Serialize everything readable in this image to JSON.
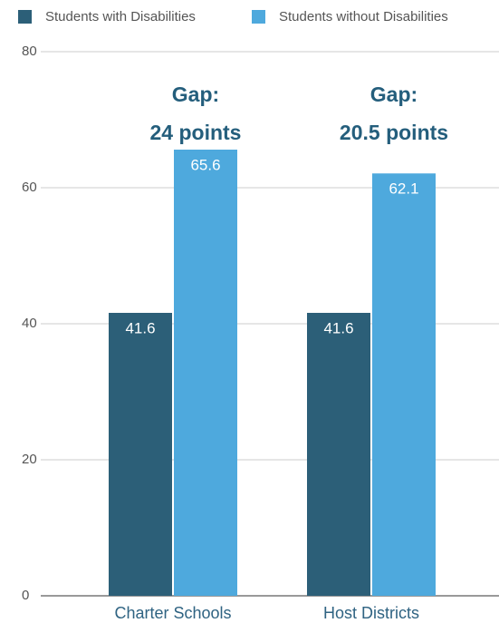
{
  "chart_data": {
    "type": "bar",
    "categories": [
      "Charter Schools",
      "Host Districts"
    ],
    "series": [
      {
        "name": "Students with Disabilities",
        "color": "#2c5f78",
        "values": [
          41.6,
          41.6
        ]
      },
      {
        "name": "Students without Disabilities",
        "color": "#4ea9dd",
        "values": [
          65.6,
          62.1
        ]
      }
    ],
    "annotations": [
      [
        "Gap:",
        "24 points"
      ],
      [
        "Gap:",
        "20.5 points"
      ]
    ],
    "ylim": [
      0,
      80
    ],
    "yticks": [
      0,
      20,
      40,
      60,
      80
    ],
    "grid": true,
    "legend": "top"
  }
}
